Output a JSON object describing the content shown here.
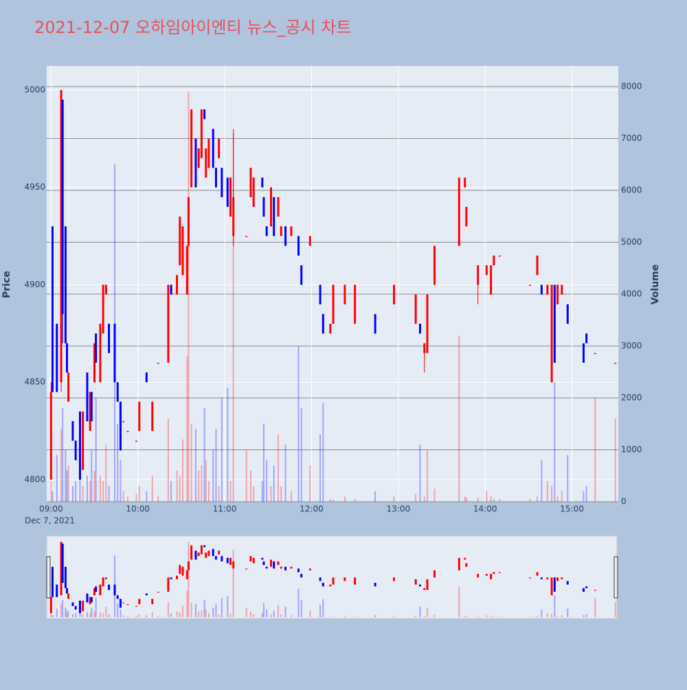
{
  "chart_data": {
    "type": "candlestick",
    "title": "2021-12-07 오하임아이엔티 뉴스_공시 차트",
    "y_label": "Price",
    "y2_label": "Volume",
    "x_date_label": "Dec 7, 2021",
    "up_color": "#ff0000",
    "down_color": "#0000ff",
    "x": [
      "09:00",
      "09:01",
      "09:04",
      "09:07",
      "09:08",
      "09:10",
      "09:11",
      "09:12",
      "09:15",
      "09:17",
      "09:20",
      "09:22",
      "09:25",
      "09:27",
      "09:28",
      "09:30",
      "09:31",
      "09:34",
      "09:36",
      "09:38",
      "09:40",
      "09:44",
      "09:46",
      "09:48",
      "09:50",
      "09:53",
      "09:59",
      "10:01",
      "10:06",
      "10:10",
      "10:14",
      "10:21",
      "10:23",
      "10:27",
      "10:29",
      "10:31",
      "10:34",
      "10:35",
      "10:37",
      "10:40",
      "10:42",
      "10:44",
      "10:46",
      "10:47",
      "10:49",
      "10:52",
      "10:54",
      "10:56",
      "10:58",
      "11:02",
      "11:04",
      "11:06",
      "11:15",
      "11:18",
      "11:20",
      "11:26",
      "11:27",
      "11:29",
      "11:32",
      "11:34",
      "11:37",
      "11:39",
      "11:42",
      "11:46",
      "11:51",
      "11:53",
      "11:59",
      "12:06",
      "12:08",
      "12:13",
      "12:15",
      "12:23",
      "12:30",
      "12:44",
      "12:57",
      "13:12",
      "13:15",
      "13:18",
      "13:20",
      "13:25",
      "13:42",
      "13:46",
      "13:47",
      "13:55",
      "14:01",
      "14:04",
      "14:06",
      "14:10",
      "14:31",
      "14:36",
      "14:39",
      "14:43",
      "14:46",
      "14:48",
      "14:50",
      "14:53",
      "14:57",
      "15:08",
      "15:10",
      "15:16",
      "15:30"
    ],
    "open": [
      4800,
      4930,
      4880,
      4850,
      4995,
      4930,
      4870,
      4840,
      4830,
      4820,
      4835,
      4805,
      4855,
      4825,
      4845,
      4850,
      4875,
      4850,
      4875,
      4895,
      4880,
      4880,
      4850,
      4840,
      4830,
      4825,
      4820,
      4825,
      4855,
      4825,
      4860,
      4860,
      4900,
      4895,
      4910,
      4905,
      4895,
      4920,
      4950,
      4975,
      4960,
      4965,
      4990,
      4955,
      4960,
      4980,
      4960,
      4965,
      4960,
      4955,
      4935,
      4925,
      4925,
      4945,
      4940,
      4955,
      4945,
      4930,
      4930,
      4945,
      4935,
      4925,
      4930,
      4925,
      4925,
      4910,
      4920,
      4900,
      4885,
      4875,
      4880,
      4890,
      4880,
      4885,
      4890,
      4880,
      4880,
      4865,
      4865,
      4900,
      4920,
      4950,
      4930,
      4900,
      4905,
      4895,
      4910,
      4915,
      4900,
      4905,
      4900,
      4895,
      4850,
      4900,
      4890,
      4895,
      4890,
      4870,
      4875,
      4865,
      4860
    ],
    "high": [
      4850,
      4930,
      4880,
      5000,
      4995,
      4930,
      4870,
      4855,
      4830,
      4820,
      4835,
      4835,
      4855,
      4845,
      4845,
      4870,
      4875,
      4880,
      4900,
      4900,
      4880,
      4880,
      4850,
      4840,
      4830,
      4825,
      4820,
      4840,
      4855,
      4840,
      4860,
      4900,
      4900,
      4905,
      4935,
      4930,
      4920,
      4945,
      4990,
      4975,
      4970,
      4990,
      4990,
      4970,
      4975,
      4980,
      4960,
      4975,
      4960,
      4955,
      4955,
      4980,
      4925,
      4960,
      4955,
      4955,
      4945,
      4930,
      4950,
      4945,
      4945,
      4930,
      4930,
      4930,
      4925,
      4910,
      4925,
      4900,
      4885,
      4880,
      4900,
      4900,
      4900,
      4885,
      4900,
      4895,
      4880,
      4870,
      4895,
      4920,
      4955,
      4955,
      4940,
      4910,
      4910,
      4910,
      4915,
      4915,
      4900,
      4915,
      4900,
      4900,
      4900,
      4900,
      4900,
      4900,
      4890,
      4870,
      4875,
      4865,
      4860
    ],
    "low": [
      4800,
      4845,
      4845,
      4845,
      4870,
      4870,
      4855,
      4840,
      4820,
      4810,
      4800,
      4805,
      4830,
      4825,
      4830,
      4850,
      4860,
      4850,
      4875,
      4895,
      4865,
      4850,
      4840,
      4815,
      4830,
      4825,
      4820,
      4825,
      4850,
      4825,
      4860,
      4860,
      4895,
      4895,
      4910,
      4905,
      4895,
      4920,
      4950,
      4950,
      4960,
      4965,
      4985,
      4955,
      4960,
      4960,
      4950,
      4965,
      4945,
      4940,
      4935,
      4920,
      4925,
      4945,
      4940,
      4950,
      4935,
      4925,
      4930,
      4925,
      4935,
      4925,
      4920,
      4925,
      4915,
      4900,
      4920,
      4890,
      4875,
      4875,
      4880,
      4890,
      4880,
      4875,
      4890,
      4880,
      4875,
      4855,
      4865,
      4900,
      4920,
      4950,
      4930,
      4890,
      4905,
      4895,
      4910,
      4915,
      4900,
      4905,
      4895,
      4895,
      4850,
      4860,
      4890,
      4895,
      4880,
      4860,
      4870,
      4865,
      4860
    ],
    "close": [
      4845,
      4845,
      4845,
      5000,
      4885,
      4870,
      4855,
      4855,
      4820,
      4810,
      4800,
      4835,
      4830,
      4845,
      4830,
      4870,
      4860,
      4880,
      4900,
      4900,
      4865,
      4850,
      4840,
      4815,
      4830,
      4825,
      4820,
      4840,
      4850,
      4840,
      4860,
      4900,
      4895,
      4905,
      4935,
      4930,
      4920,
      4945,
      4990,
      4950,
      4970,
      4990,
      4985,
      4970,
      4975,
      4960,
      4950,
      4975,
      4945,
      4940,
      4955,
      4945,
      4925,
      4960,
      4955,
      4950,
      4935,
      4925,
      4950,
      4925,
      4945,
      4930,
      4920,
      4930,
      4915,
      4900,
      4925,
      4890,
      4875,
      4880,
      4900,
      4900,
      4900,
      4875,
      4900,
      4895,
      4875,
      4870,
      4895,
      4920,
      4955,
      4955,
      4940,
      4910,
      4910,
      4910,
      4915,
      4915,
      4900,
      4915,
      4895,
      4900,
      4900,
      4860,
      4900,
      4900,
      4880,
      4860,
      4870,
      4865,
      4860
    ],
    "volume": [
      400,
      200,
      900,
      1400,
      1800,
      1000,
      600,
      700,
      300,
      400,
      600,
      300,
      500,
      400,
      1000,
      600,
      2000,
      500,
      400,
      1100,
      300,
      6500,
      1500,
      800,
      200,
      100,
      150,
      300,
      200,
      500,
      100,
      1600,
      400,
      600,
      500,
      1200,
      2800,
      7900,
      1500,
      1400,
      600,
      700,
      1800,
      800,
      400,
      1000,
      1400,
      300,
      2000,
      2200,
      400,
      7100,
      1000,
      600,
      300,
      400,
      1500,
      800,
      300,
      700,
      1300,
      300,
      1100,
      200,
      3000,
      1800,
      700,
      1300,
      1900,
      50,
      40,
      100,
      50,
      200,
      100,
      150,
      1100,
      100,
      1000,
      250,
      3200,
      100,
      80,
      80,
      200,
      100,
      50,
      50,
      50,
      100,
      800,
      400,
      300,
      2300,
      100,
      200,
      900,
      200,
      300,
      2000,
      1600
    ],
    "xlim": [
      "08:57",
      "15:32"
    ],
    "xticks": [
      "09:00",
      "10:00",
      "11:00",
      "12:00",
      "13:00",
      "14:00",
      "15:00"
    ],
    "ylim": [
      4788.7,
      5012.3
    ],
    "yticks": [
      4800,
      4850,
      4900,
      4950,
      5000
    ],
    "y2lim": [
      0,
      8398
    ],
    "y2ticks": [
      0,
      1000,
      2000,
      3000,
      4000,
      5000,
      6000,
      7000,
      8000
    ]
  }
}
